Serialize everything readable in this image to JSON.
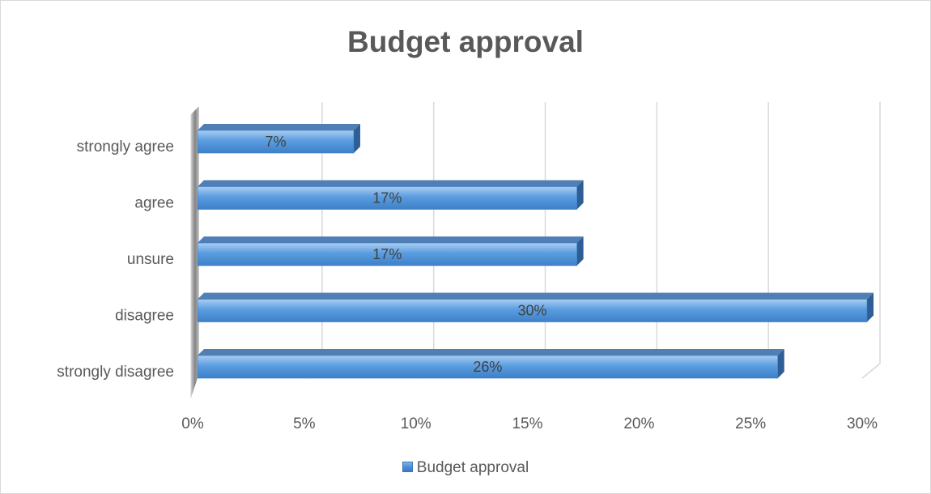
{
  "chart_data": {
    "type": "bar",
    "orientation": "horizontal",
    "title": "Budget approval",
    "categories": [
      "strongly agree",
      "agree",
      "unsure",
      "disagree",
      "strongly disagree"
    ],
    "series": [
      {
        "name": "Budget approval",
        "values": [
          7,
          17,
          17,
          30,
          26
        ],
        "data_labels": [
          "7%",
          "17%",
          "17%",
          "30%",
          "26%"
        ]
      }
    ],
    "x_ticks": [
      "0%",
      "5%",
      "10%",
      "15%",
      "20%",
      "25%",
      "30%"
    ],
    "xlim": [
      0,
      30
    ],
    "grid": true,
    "legend_position": "bottom",
    "colors": {
      "bar": "#4a90d9",
      "bar_light": "#8ec0ee",
      "bar_dark": "#2f6aa8",
      "bar_top": "#4f7fb4",
      "bar_side": "#2d5e94",
      "grid": "#d9d9d9",
      "text": "#595959"
    }
  }
}
